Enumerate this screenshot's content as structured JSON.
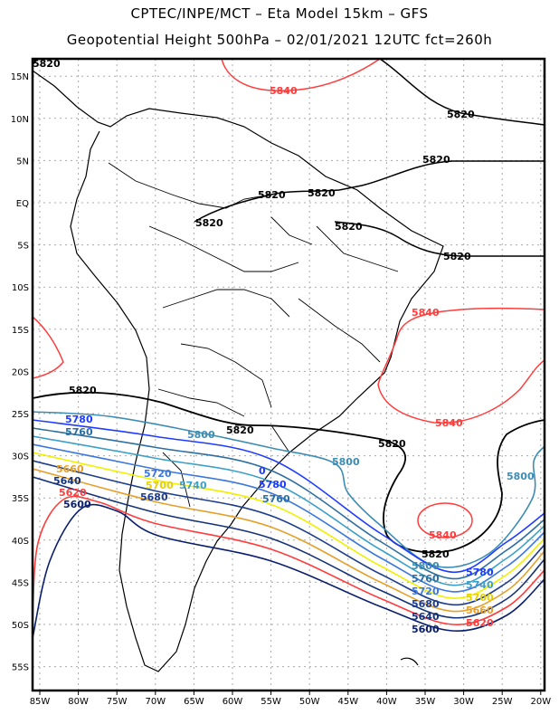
{
  "title": {
    "line1": "CPTEC/INPE/MCT –  Eta Model 15km – GFS",
    "line2": "Geopotential Height 500hPa – 02/01/2021 12UTC fct=260h"
  },
  "axes": {
    "lon": [
      {
        "v": 85,
        "label": "85W"
      },
      {
        "v": 80,
        "label": "80W"
      },
      {
        "v": 75,
        "label": "75W"
      },
      {
        "v": 70,
        "label": "70W"
      },
      {
        "v": 65,
        "label": "65W"
      },
      {
        "v": 60,
        "label": "60W"
      },
      {
        "v": 55,
        "label": "55W"
      },
      {
        "v": 50,
        "label": "50W"
      },
      {
        "v": 45,
        "label": "45W"
      },
      {
        "v": 40,
        "label": "40W"
      },
      {
        "v": 35,
        "label": "35W"
      },
      {
        "v": 30,
        "label": "30W"
      },
      {
        "v": 25,
        "label": "25W"
      },
      {
        "v": 20,
        "label": "20W"
      }
    ],
    "lat": [
      {
        "v": -15,
        "label": "15N"
      },
      {
        "v": -10,
        "label": "10N"
      },
      {
        "v": -5,
        "label": "5N"
      },
      {
        "v": 0,
        "label": "EQ"
      },
      {
        "v": 5,
        "label": "5S"
      },
      {
        "v": 10,
        "label": "10S"
      },
      {
        "v": 15,
        "label": "15S"
      },
      {
        "v": 20,
        "label": "20S"
      },
      {
        "v": 25,
        "label": "25S"
      },
      {
        "v": 30,
        "label": "30S"
      },
      {
        "v": 35,
        "label": "35S"
      },
      {
        "v": 40,
        "label": "40S"
      },
      {
        "v": 45,
        "label": "45S"
      },
      {
        "v": 50,
        "label": "50S"
      },
      {
        "v": 55,
        "label": "55S"
      }
    ]
  },
  "contours": [
    {
      "level": "5840",
      "color": "#ff3c3c"
    },
    {
      "level": "5820",
      "color": "#000000"
    },
    {
      "level": "5800",
      "color": "#3c8cb4"
    },
    {
      "level": "5780",
      "color": "#1e3cff"
    },
    {
      "level": "5760",
      "color": "#2d6ea0"
    },
    {
      "level": "5740",
      "color": "#3ca0c8"
    },
    {
      "level": "5720",
      "color": "#3c78dc"
    },
    {
      "level": "5700",
      "color": "#f0f000"
    },
    {
      "level": "5680",
      "color": "#1e3c8c"
    },
    {
      "level": "5660",
      "color": "#e6a028"
    },
    {
      "level": "5640",
      "color": "#143278"
    },
    {
      "level": "5620",
      "color": "#ff3c3c"
    },
    {
      "level": "5600",
      "color": "#0a1e6e"
    }
  ],
  "labels": [
    "5820",
    "5840",
    "5820",
    "5820",
    "5820",
    "5820",
    "5820",
    "5820",
    "5820",
    "5840",
    "5840",
    "5840",
    "5820",
    "5820",
    "5820",
    "5820",
    "5800",
    "5780",
    "5760",
    "5800",
    "5720",
    "5700",
    "5680",
    "5740",
    "5780",
    "5760",
    "5660",
    "5640",
    "5620",
    "5600",
    "5800",
    "5800",
    "5780",
    "5760",
    "5740",
    "5720",
    "5700",
    "5680",
    "5660",
    "5640",
    "5620",
    "5600",
    "0"
  ]
}
